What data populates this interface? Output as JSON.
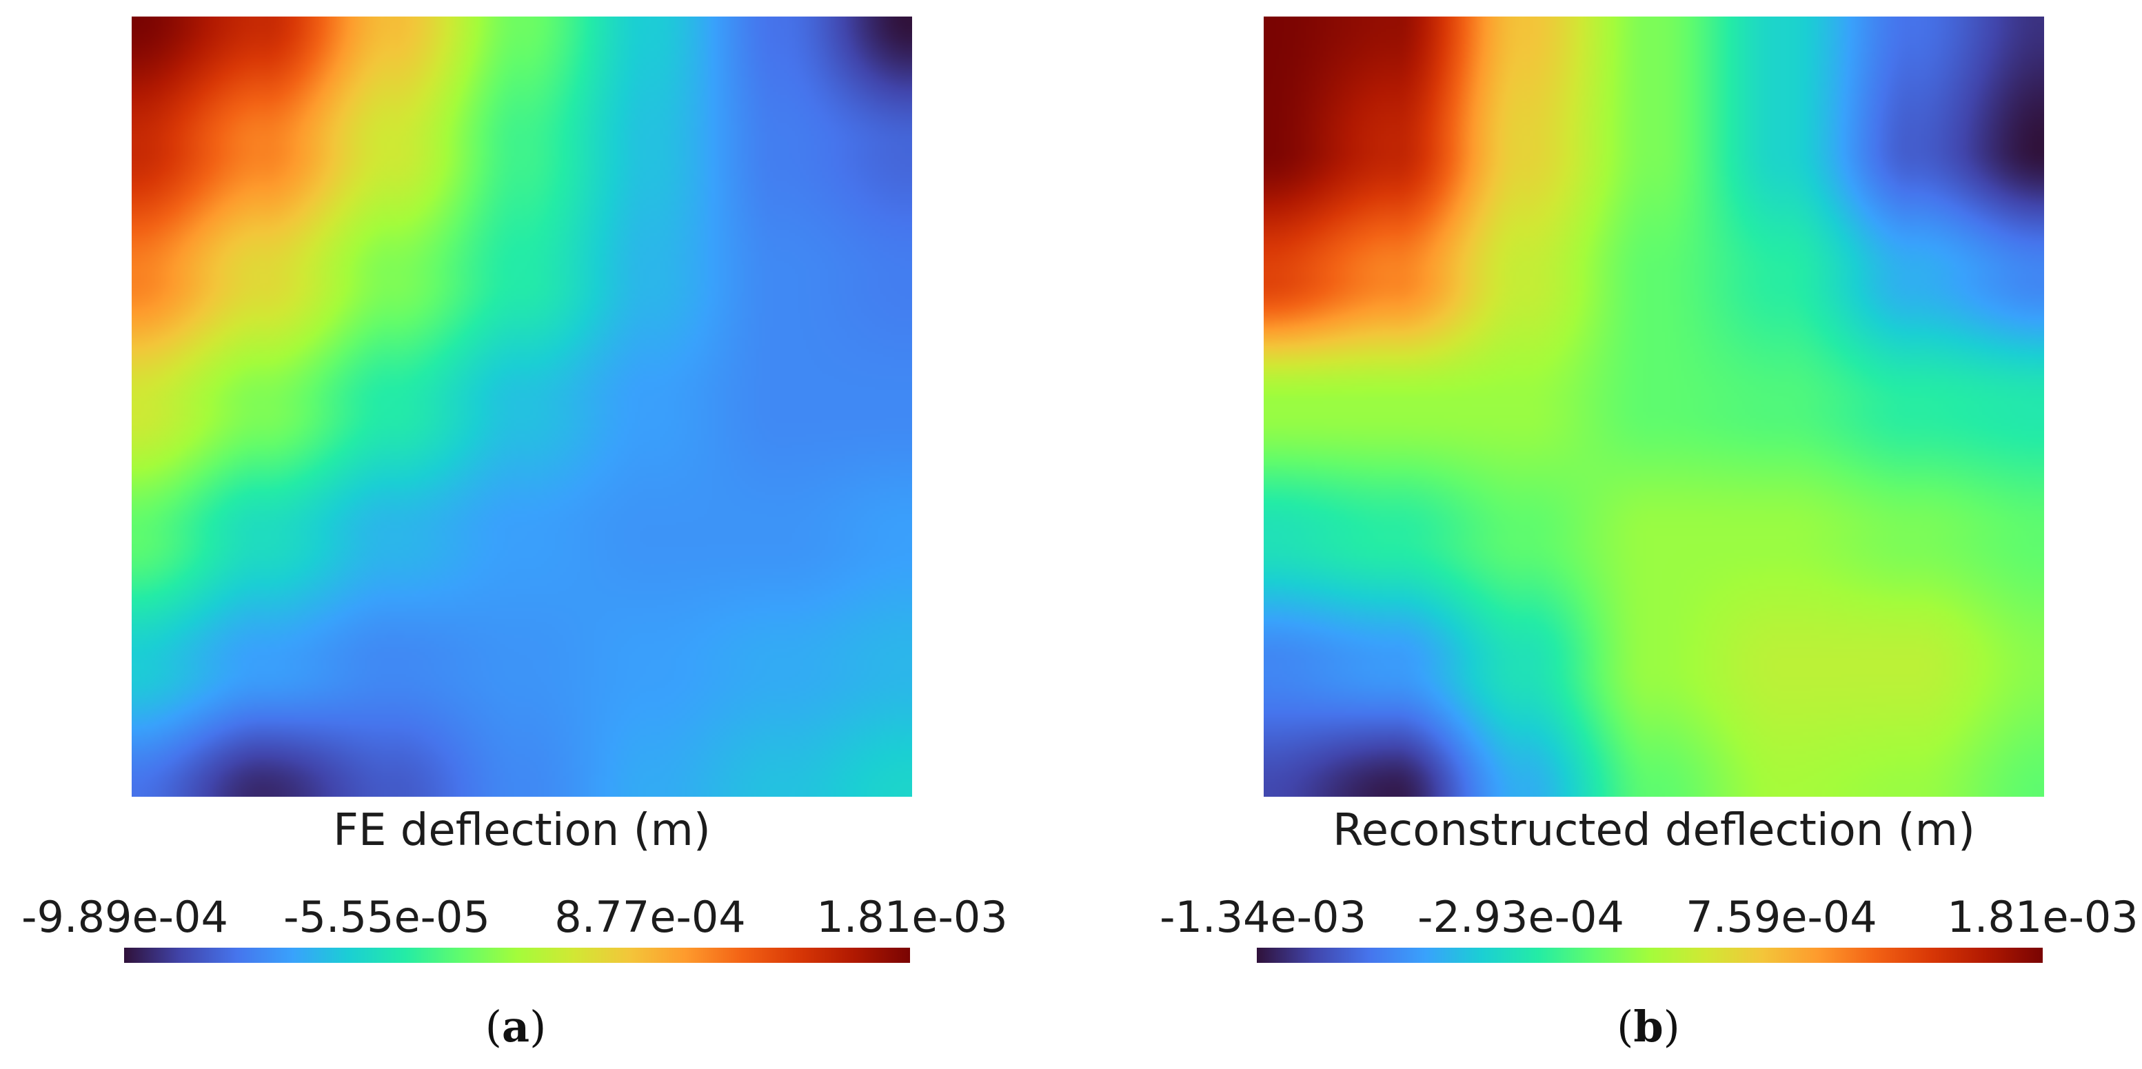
{
  "colors": {
    "turbo": [
      "#30123b",
      "#4145ab",
      "#4675ed",
      "#39a2fc",
      "#1bcfd4",
      "#24eca6",
      "#61fc6c",
      "#a4fc3b",
      "#d1e834",
      "#f3c63a",
      "#fe9b2d",
      "#f36315",
      "#d93806",
      "#b11901",
      "#7a0402"
    ]
  },
  "chart_data": [
    {
      "type": "heatmap",
      "panel_label": "(a)",
      "panel_letter": "a",
      "title": "FE deflection (m)",
      "colorbar": {
        "min": -0.000989,
        "max": 0.00181,
        "tick_labels": [
          "-9.89e-04",
          "-5.55e-05",
          "8.77e-04",
          "1.81e-03"
        ],
        "tick_values": [
          -0.000989,
          -5.55e-05,
          0.000877,
          0.00181
        ],
        "placement": "bottom"
      },
      "grid_z": [
        [
          0.00181,
          0.0015,
          0.00085,
          0.00025,
          -0.0002,
          -0.0006,
          -0.00099
        ],
        [
          0.0015,
          0.0011,
          0.0006,
          0.0001,
          -0.00025,
          -0.00055,
          -0.00065
        ],
        [
          0.0011,
          0.0007,
          0.0003,
          0.0,
          -0.0003,
          -0.0005,
          -0.00055
        ],
        [
          0.0006,
          0.0003,
          0.0,
          -0.00025,
          -0.0004,
          -0.0005,
          -0.0005
        ],
        [
          0.0002,
          -0.0001,
          -0.0003,
          -0.0004,
          -0.00045,
          -0.00045,
          -0.0004
        ],
        [
          -0.0002,
          -0.0004,
          -0.0005,
          -0.00045,
          -0.0004,
          -0.00035,
          -0.0003
        ],
        [
          -0.0006,
          -0.0009,
          -0.0007,
          -0.0005,
          -0.00035,
          -0.00025,
          -0.00015
        ]
      ]
    },
    {
      "type": "heatmap",
      "panel_label": "(b)",
      "panel_letter": "b",
      "title": "Reconstructed deflection (m)",
      "colorbar": {
        "min": -0.00134,
        "max": 0.00181,
        "tick_labels": [
          "-1.34e-03",
          "-2.93e-04",
          "7.59e-04",
          "1.81e-03"
        ],
        "tick_values": [
          -0.00134,
          -0.000293,
          0.000759,
          0.00181
        ],
        "placement": "bottom"
      },
      "grid_z": [
        [
          0.00181,
          0.0017,
          0.0007,
          0.0001,
          -0.0004,
          -0.0009,
          -0.0012
        ],
        [
          0.0018,
          0.0015,
          0.0006,
          0.0001,
          -0.0004,
          -0.001,
          -0.00134
        ],
        [
          0.0013,
          0.001,
          0.0004,
          0.0,
          -0.0002,
          -0.0006,
          -0.0008
        ],
        [
          0.0002,
          0.0002,
          0.0002,
          0.0,
          -5e-05,
          -0.0002,
          -0.00025
        ],
        [
          -0.0003,
          -0.0002,
          0.0,
          0.0002,
          0.0002,
          0.0001,
          0.0
        ],
        [
          -0.0008,
          -0.0007,
          -0.0003,
          0.0002,
          0.00035,
          0.00035,
          0.00015
        ],
        [
          -0.0011,
          -0.0013,
          -0.0006,
          0.0,
          0.00025,
          0.0002,
          0.0
        ]
      ]
    }
  ]
}
